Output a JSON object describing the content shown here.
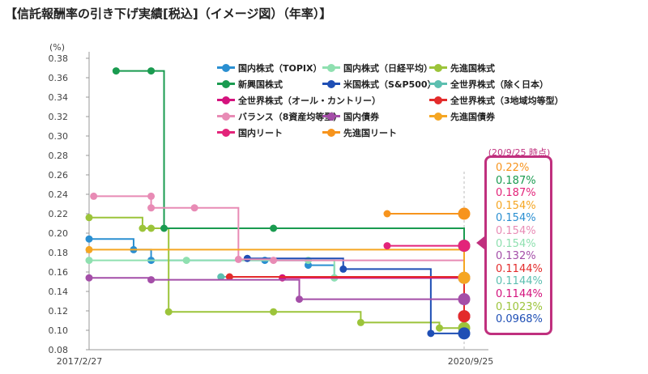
{
  "title": "【信託報酬率の引き下げ実績[税込]（イメージ図）（年率）】",
  "callout": {
    "title": "(20/9/25 時点)",
    "values": [
      {
        "text": "0.22%",
        "color": "#f7941d"
      },
      {
        "text": "0.187%",
        "color": "#1a9b50"
      },
      {
        "text": "0.187%",
        "color": "#e3247a"
      },
      {
        "text": "0.154%",
        "color": "#f5a623"
      },
      {
        "text": "0.154%",
        "color": "#2a8fd1"
      },
      {
        "text": "0.154%",
        "color": "#e88bb5"
      },
      {
        "text": "0.154%",
        "color": "#8fe0b0"
      },
      {
        "text": "0.132%",
        "color": "#a44ea8"
      },
      {
        "text": "0.1144%",
        "color": "#e32b2b"
      },
      {
        "text": "0.1144%",
        "color": "#5cbfb0"
      },
      {
        "text": "0.1144%",
        "color": "#d4127d"
      },
      {
        "text": "0.1023%",
        "color": "#9cc43a"
      },
      {
        "text": "0.0968%",
        "color": "#1f4fb5"
      }
    ]
  },
  "chart_data": {
    "type": "line",
    "title": "【信託報酬率の引き下げ実績[税込]（イメージ図）（年率）】",
    "ylabel": "(%)",
    "xlabel": "",
    "ylim": [
      0.08,
      0.38
    ],
    "yticks": [
      "0.08",
      "0.10",
      "0.12",
      "0.14",
      "0.16",
      "0.18",
      "0.20",
      "0.22",
      "0.24",
      "0.26",
      "0.28",
      "0.30",
      "0.32",
      "0.34",
      "0.36",
      "0.38"
    ],
    "xlim": [
      "2017/2/27",
      "2020/9/25"
    ],
    "xticks": [
      "2017/2/27",
      "2020/9/25"
    ],
    "step": true,
    "grid": false,
    "legend_position": "top",
    "series": [
      {
        "name": "国内株式（TOPIX）",
        "color": "#2a8fd1",
        "points": [
          [
            "2017/2/27",
            0.194
          ],
          [
            "2017/8/1",
            0.183
          ],
          [
            "2017/10/1",
            0.172
          ],
          [
            "2018/11/1",
            0.172
          ],
          [
            "2019/4/1",
            0.167
          ],
          [
            "2019/7/1",
            0.154
          ],
          [
            "2020/9/25",
            0.154
          ]
        ]
      },
      {
        "name": "国内株式（日経平均）",
        "color": "#8fe0b0",
        "points": [
          [
            "2017/2/27",
            0.172
          ],
          [
            "2018/2/1",
            0.172
          ],
          [
            "2019/4/1",
            0.172
          ],
          [
            "2019/7/1",
            0.154
          ],
          [
            "2020/9/25",
            0.154
          ]
        ]
      },
      {
        "name": "先進国株式",
        "color": "#9cc43a",
        "points": [
          [
            "2017/2/27",
            0.216
          ],
          [
            "2017/9/1",
            0.205
          ],
          [
            "2017/10/1",
            0.205
          ],
          [
            "2017/12/1",
            0.119
          ],
          [
            "2018/12/1",
            0.119
          ],
          [
            "2019/10/1",
            0.108
          ],
          [
            "2020/7/1",
            0.1023
          ],
          [
            "2020/9/25",
            0.1023
          ]
        ]
      },
      {
        "name": "新興国株式",
        "color": "#1a9b50",
        "points": [
          [
            "2017/6/1",
            0.367
          ],
          [
            "2017/10/1",
            0.367
          ],
          [
            "2017/11/15",
            0.205
          ],
          [
            "2018/12/1",
            0.205
          ],
          [
            "2020/9/25",
            0.187
          ]
        ]
      },
      {
        "name": "米国株式（S&P500）",
        "color": "#1f4fb5",
        "points": [
          [
            "2018/9/1",
            0.174
          ],
          [
            "2019/8/1",
            0.163
          ],
          [
            "2020/6/1",
            0.0968
          ],
          [
            "2020/9/25",
            0.0968
          ]
        ]
      },
      {
        "name": "全世界株式（除く日本）",
        "color": "#5cbfb0",
        "points": [
          [
            "2018/6/1",
            0.155
          ],
          [
            "2020/9/25",
            0.1144
          ]
        ]
      },
      {
        "name": "全世界株式（オール・カントリー）",
        "color": "#d4127d",
        "points": [
          [
            "2019/1/1",
            0.154
          ],
          [
            "2020/9/25",
            0.1144
          ]
        ]
      },
      {
        "name": "全世界株式（3地域均等型）",
        "color": "#e32b2b",
        "points": [
          [
            "2018/7/1",
            0.155
          ],
          [
            "2020/9/25",
            0.1144
          ]
        ]
      },
      {
        "name": "バランス（8資産均等型）",
        "color": "#e88bb5",
        "points": [
          [
            "2017/3/15",
            0.238
          ],
          [
            "2017/10/1",
            0.238
          ],
          [
            "2017/10/1",
            0.226
          ],
          [
            "2018/3/1",
            0.226
          ],
          [
            "2018/8/1",
            0.173
          ],
          [
            "2018/12/1",
            0.172
          ],
          [
            "2020/9/25",
            0.154
          ]
        ]
      },
      {
        "name": "国内債券",
        "color": "#a44ea8",
        "points": [
          [
            "2017/2/27",
            0.154
          ],
          [
            "2017/10/1",
            0.152
          ],
          [
            "2019/3/1",
            0.132
          ],
          [
            "2020/9/25",
            0.132
          ]
        ]
      },
      {
        "name": "先進国債券",
        "color": "#f5a623",
        "points": [
          [
            "2017/2/27",
            0.183
          ],
          [
            "2020/9/25",
            0.154
          ]
        ]
      },
      {
        "name": "国内リート",
        "color": "#e3247a",
        "points": [
          [
            "2020/1/1",
            0.187
          ],
          [
            "2020/9/25",
            0.187
          ]
        ]
      },
      {
        "name": "先進国リート",
        "color": "#f7941d",
        "points": [
          [
            "2020/1/1",
            0.22
          ],
          [
            "2020/9/25",
            0.22
          ]
        ]
      }
    ]
  }
}
